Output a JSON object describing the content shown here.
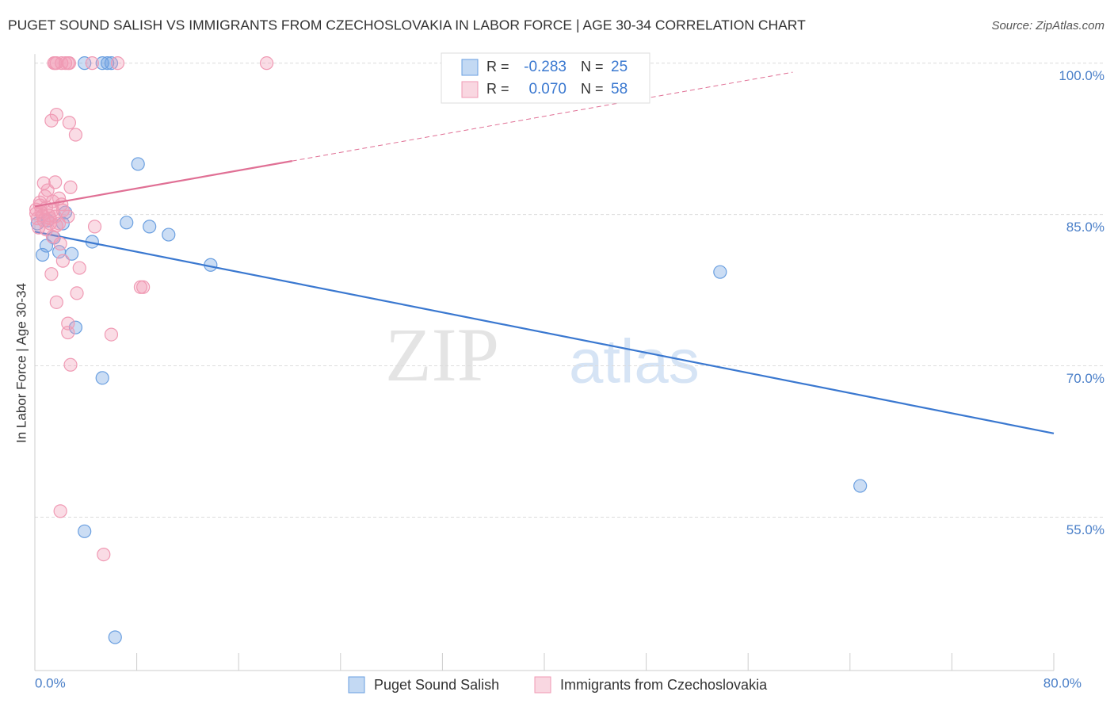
{
  "chart_data": {
    "type": "scatter",
    "title": "PUGET SOUND SALISH VS IMMIGRANTS FROM CZECHOSLOVAKIA IN LABOR FORCE | AGE 30-34 CORRELATION CHART",
    "source": "Source: ZipAtlas.com",
    "watermark": [
      "ZIP",
      "atlas"
    ],
    "ylabel": "In Labor Force | Age 30-34",
    "xlim": [
      0,
      80
    ],
    "ylim": [
      39.8,
      100.9
    ],
    "xticks": [
      {
        "value": 0,
        "label": "0.0%"
      },
      {
        "value": 80,
        "label": "80.0%"
      }
    ],
    "xminor_ticks": [
      8,
      16,
      24,
      32,
      40,
      48,
      56,
      64,
      72
    ],
    "yticks": [
      {
        "value": 55,
        "label": "55.0%"
      },
      {
        "value": 70,
        "label": "70.0%"
      },
      {
        "value": 85,
        "label": "85.0%"
      },
      {
        "value": 100,
        "label": "100.0%"
      }
    ],
    "grid": true,
    "legend_r_text": "R =",
    "legend_n_text": "N =",
    "series": [
      {
        "name": "Puget Sound Salish",
        "color": "#6a9fe0",
        "line_color": "#3a78d0",
        "r": {
          "value": -0.283,
          "label": "-0.283"
        },
        "n": 25,
        "x": [
          3.9,
          5.3,
          5.7,
          6.0,
          8.1,
          2.4,
          2.2,
          7.2,
          9.0,
          10.5,
          4.5,
          0.9,
          0.6,
          1.9,
          2.9,
          13.8,
          53.8,
          3.2,
          5.3,
          64.8,
          3.9,
          6.3,
          1.5,
          1.0,
          0.2
        ],
        "values": [
          100,
          100,
          100,
          100,
          90.0,
          85.2,
          84.1,
          84.2,
          83.8,
          83.0,
          82.3,
          81.9,
          81.0,
          81.3,
          81.1,
          80.0,
          79.3,
          73.8,
          68.8,
          58.1,
          53.6,
          43.1,
          82.7,
          84.4,
          84.1
        ],
        "trend": [
          [
            0,
            83.3
          ],
          [
            80,
            63.3
          ]
        ]
      },
      {
        "name": "Immigrants from Czechoslovakia",
        "color": "#f09ab4",
        "line_color": "#e07095",
        "r": {
          "value": 0.07,
          "label": "0.070"
        },
        "n": 58,
        "x": [
          1.5,
          1.7,
          2.1,
          2.4,
          2.6,
          2.7,
          4.5,
          6.5,
          18.2,
          1.6,
          1.7,
          1.3,
          2.7,
          3.2,
          1.6,
          0.7,
          2.8,
          1.0,
          0.8,
          1.4,
          2.1,
          0.4,
          0.1,
          0.5,
          1.1,
          1.6,
          0.2,
          0.7,
          1.2,
          1.9,
          4.7,
          1.4,
          2.0,
          2.2,
          3.5,
          1.3,
          8.3,
          8.5,
          3.3,
          1.7,
          2.6,
          2.6,
          6.0,
          2.8,
          2.0,
          5.4,
          0.1,
          0.6,
          0.9,
          2.6,
          1.2,
          0.4,
          1.4,
          1.7,
          0.9,
          2.2,
          0.3,
          1.9
        ],
        "values": [
          100,
          100,
          100,
          100,
          100,
          100,
          100,
          100,
          100,
          100,
          94.9,
          94.3,
          94.1,
          92.9,
          88.2,
          88.1,
          87.7,
          87.4,
          86.8,
          86.3,
          86.0,
          85.9,
          85.5,
          85.2,
          84.9,
          84.8,
          84.6,
          84.4,
          84.1,
          84.1,
          83.8,
          82.8,
          82.1,
          80.4,
          79.7,
          79.1,
          77.8,
          77.8,
          77.2,
          76.3,
          74.2,
          73.3,
          73.1,
          70.1,
          55.6,
          51.3,
          85.1,
          84.9,
          85.7,
          84.8,
          84.6,
          86.2,
          85.4,
          83.9,
          83.5,
          85.4,
          83.7,
          86.6
        ],
        "trend": [
          [
            0,
            85.8
          ],
          [
            20.2,
            90.3
          ],
          [
            59.5,
            99.1
          ]
        ]
      }
    ]
  }
}
